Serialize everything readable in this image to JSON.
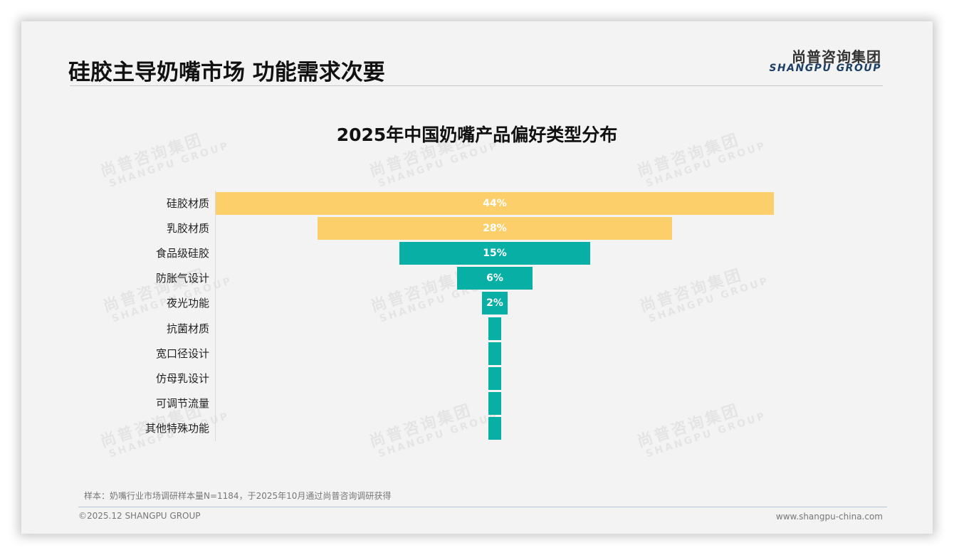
{
  "header": {
    "title": "硅胶主导奶嘴市场 功能需求次要",
    "logo_cn": "尚普咨询集团",
    "logo_en": "SHANGPU GROUP"
  },
  "watermark": {
    "cn": "尚普咨询集团",
    "en": "SHANGPU GROUP"
  },
  "colors": {
    "primary_bar": "#FDCF6A",
    "secondary_bar": "#08AFA5",
    "background": "#F3F3F3"
  },
  "chart_data": {
    "type": "bar",
    "orientation": "horizontal-funnel",
    "title": "2025年中国奶嘴产品偏好类型分布",
    "categories": [
      "硅胶材质",
      "乳胶材质",
      "食品级硅胶",
      "防胀气设计",
      "夜光功能",
      "抗菌材质",
      "宽口径设计",
      "仿母乳设计",
      "可调节流量",
      "其他特殊功能"
    ],
    "values": [
      44,
      28,
      15,
      6,
      2,
      1,
      1,
      1,
      1,
      1
    ],
    "labels": [
      "44%",
      "28%",
      "15%",
      "6%",
      "2%",
      "",
      "",
      "",
      "",
      ""
    ],
    "bar_colors": [
      "#FDCF6A",
      "#FDCF6A",
      "#08AFA5",
      "#08AFA5",
      "#08AFA5",
      "#08AFA5",
      "#08AFA5",
      "#08AFA5",
      "#08AFA5",
      "#08AFA5"
    ],
    "unit": "%",
    "xlabel": "",
    "ylabel": "",
    "grid": false,
    "legend": null
  },
  "footer": {
    "note": "样本：奶嘴行业市场调研样本量N=1184，于2025年10月通过尚普咨询调研获得",
    "copyright": "©2025.12 SHANGPU GROUP",
    "website": "www.shangpu-china.com"
  }
}
